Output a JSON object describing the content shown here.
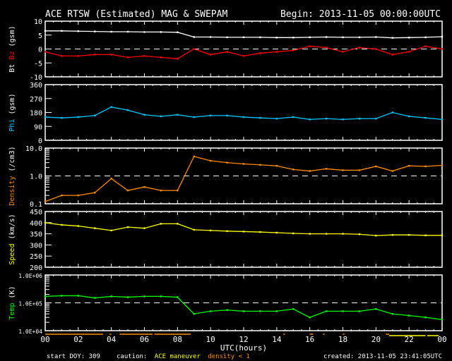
{
  "header": {
    "title": "ACE RTSW (Estimated) MAG & SWEPAM",
    "begin": "Begin: 2013-11-05 00:00:00UTC"
  },
  "footer": {
    "start_doy": "start DOY: 309",
    "caution": "caution:",
    "maneuver": "ACE maneuver",
    "density_note": "density < 1",
    "created": "created: 2013-11-05 23:41:05UTC"
  },
  "colors": {
    "bt": "#ffffff",
    "bz": "#ff0000",
    "phi": "#00c8ff",
    "density": "#ff8c00",
    "speed": "#ffff00",
    "temp": "#00ff00",
    "maneuver": "#ffff00",
    "lowdensity": "#ff8c00"
  },
  "chart_data": {
    "type": "line",
    "xlabel": "UTC(hours)",
    "xlim": [
      0,
      24
    ],
    "xticks": [
      "00",
      "02",
      "04",
      "06",
      "08",
      "10",
      "12",
      "14",
      "16",
      "18",
      "20",
      "22",
      "00"
    ],
    "x": [
      0,
      1,
      2,
      3,
      4,
      5,
      6,
      7,
      8,
      9,
      10,
      11,
      12,
      13,
      14,
      15,
      16,
      17,
      18,
      19,
      20,
      21,
      22,
      23,
      24
    ],
    "caution_bars": {
      "density_lt_1": [
        [
          0,
          3.5
        ],
        [
          3.9,
          4.0
        ],
        [
          4.5,
          6.5
        ],
        [
          6.6,
          8.8
        ],
        [
          14.4,
          14.5
        ],
        [
          16.0,
          16.2
        ],
        [
          16.8,
          16.9
        ],
        [
          18.0,
          18.1
        ],
        [
          20.6,
          20.8
        ]
      ],
      "ace_maneuver": [
        [
          20.8,
          23.0
        ],
        [
          23.1,
          23.8
        ]
      ]
    },
    "panels": [
      {
        "ylabel": [
          "Bt",
          "Bz",
          "(gsm)"
        ],
        "scale": "linear",
        "ylim": [
          -10,
          10
        ],
        "yticks": [
          "10",
          "5",
          "0",
          "-5",
          "-10"
        ],
        "tickvals": [
          10,
          5,
          0,
          -5,
          -10
        ],
        "refline": 0,
        "series": [
          {
            "name": "Bt",
            "color_key": "bt",
            "values": [
              6.5,
              6.5,
              6.4,
              6.3,
              6.2,
              6.2,
              6.1,
              6.1,
              6.0,
              4.3,
              4.3,
              4.2,
              4.2,
              4.2,
              4.1,
              4.1,
              4.2,
              4.3,
              4.2,
              4.2,
              4.3,
              4.0,
              4.1,
              4.2,
              4.4
            ]
          },
          {
            "name": "Bz",
            "color_key": "bz",
            "values": [
              -1,
              -2.5,
              -2.5,
              -2,
              -2,
              -3,
              -2.5,
              -3,
              -3.5,
              0,
              -2,
              -1,
              -2.5,
              -1.5,
              -1,
              -0.5,
              1,
              0.5,
              -1,
              0.5,
              0,
              -2,
              -1,
              1,
              0
            ]
          }
        ]
      },
      {
        "ylabel": [
          "Phi",
          "(gsm)"
        ],
        "scale": "linear",
        "ylim": [
          0,
          360
        ],
        "yticks": [
          "360",
          "270",
          "180",
          "90",
          "0"
        ],
        "tickvals": [
          360,
          270,
          180,
          90,
          0
        ],
        "series": [
          {
            "name": "Phi",
            "color_key": "phi",
            "values": [
              150,
              145,
              150,
              160,
              215,
              195,
              165,
              155,
              165,
              150,
              160,
              160,
              150,
              145,
              140,
              150,
              135,
              140,
              135,
              140,
              140,
              180,
              155,
              145,
              135
            ]
          }
        ]
      },
      {
        "ylabel": [
          "Density",
          "(/cm3)"
        ],
        "scale": "log",
        "ylim": [
          0.1,
          10
        ],
        "yticks": [
          "10.0",
          "1.0",
          "0.1"
        ],
        "tickvals": [
          10,
          1,
          0.1
        ],
        "refline": 1,
        "series": [
          {
            "name": "Density",
            "color_key": "density",
            "values": [
              0.12,
              0.2,
              0.2,
              0.25,
              0.8,
              0.3,
              0.4,
              0.3,
              0.3,
              5,
              3.5,
              3,
              2.7,
              2.5,
              2.3,
              1.7,
              1.5,
              1.8,
              1.6,
              1.6,
              2.2,
              1.5,
              2.3,
              2.2,
              2.4
            ]
          }
        ]
      },
      {
        "ylabel": [
          "Speed",
          "(km/s)"
        ],
        "scale": "linear",
        "ylim": [
          200,
          450
        ],
        "yticks": [
          "450",
          "400",
          "350",
          "300",
          "250",
          "200"
        ],
        "tickvals": [
          450,
          400,
          350,
          300,
          250,
          200
        ],
        "series": [
          {
            "name": "Speed",
            "color_key": "speed",
            "values": [
              400,
              390,
              385,
              375,
              365,
              380,
              375,
              395,
              395,
              368,
              365,
              362,
              360,
              358,
              355,
              352,
              350,
              350,
              350,
              348,
              342,
              345,
              345,
              343,
              343
            ]
          }
        ]
      },
      {
        "ylabel": [
          "Temp",
          "(K)"
        ],
        "scale": "log",
        "ylim": [
          10000,
          1000000
        ],
        "yticks": [
          "1.0E+06",
          "1.0E+05",
          "1.0E+04"
        ],
        "tickvals": [
          1000000,
          100000,
          10000
        ],
        "refline": 100000,
        "series": [
          {
            "name": "Temp",
            "color_key": "temp",
            "values": [
              170000,
              180000,
              180000,
              150000,
              170000,
              160000,
              170000,
              170000,
              160000,
              40000,
              50000,
              55000,
              50000,
              50000,
              50000,
              60000,
              30000,
              50000,
              50000,
              50000,
              60000,
              40000,
              35000,
              30000,
              25000
            ]
          }
        ]
      }
    ]
  }
}
